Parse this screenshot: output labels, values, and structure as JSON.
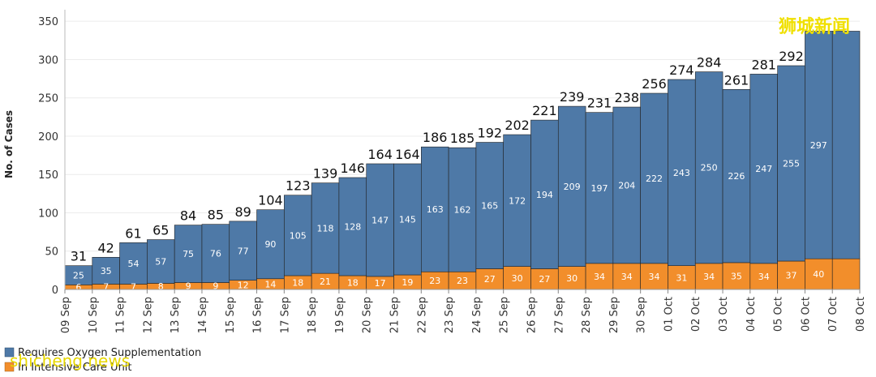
{
  "chart_data": {
    "type": "bar",
    "stacked": true,
    "ylabel": "No. of Cases",
    "ylim": [
      0,
      365
    ],
    "yticks": [
      0,
      50,
      100,
      150,
      200,
      250,
      300,
      350
    ],
    "grid": true,
    "x_tick_labels": [
      "09 Sep",
      "10 Sep",
      "11 Sep",
      "12 Sep",
      "13 Sep",
      "14 Sep",
      "15 Sep",
      "16 Sep",
      "17 Sep",
      "18 Sep",
      "19 Sep",
      "20 Sep",
      "21 Sep",
      "22 Sep",
      "23 Sep",
      "24 Sep",
      "25 Sep",
      "26 Sep",
      "27 Sep",
      "28 Sep",
      "29 Sep",
      "30 Sep",
      "01 Oct",
      "02 Oct",
      "03 Oct",
      "04 Oct",
      "05 Oct",
      "06 Oct",
      "07 Oct",
      "08 Oct"
    ],
    "categories": [
      "09 Sep",
      "10 Sep",
      "11 Sep",
      "12 Sep",
      "13 Sep",
      "14 Sep",
      "15 Sep",
      "16 Sep",
      "17 Sep",
      "18 Sep",
      "19 Sep",
      "20 Sep",
      "21 Sep",
      "22 Sep",
      "23 Sep",
      "24 Sep",
      "25 Sep",
      "26 Sep",
      "27 Sep",
      "28 Sep",
      "29 Sep",
      "30 Sep",
      "01 Oct",
      "02 Oct",
      "03 Oct",
      "04 Oct",
      "05 Oct",
      "06 Oct",
      "07 Oct"
    ],
    "series": [
      {
        "name": "In Intensive Care Unit",
        "color": "#f28e2b",
        "values": [
          6,
          7,
          7,
          8,
          9,
          9,
          12,
          14,
          18,
          21,
          18,
          17,
          19,
          23,
          23,
          27,
          30,
          27,
          30,
          34,
          34,
          34,
          31,
          34,
          35,
          34,
          37,
          40,
          40
        ]
      },
      {
        "name": "Requires Oxygen Supplementation",
        "color": "#4e79a7",
        "values": [
          25,
          35,
          54,
          57,
          75,
          76,
          77,
          90,
          105,
          118,
          128,
          147,
          145,
          163,
          162,
          165,
          172,
          194,
          209,
          197,
          204,
          222,
          243,
          250,
          226,
          247,
          255,
          297,
          297
        ]
      }
    ],
    "totals": [
      31,
      42,
      61,
      65,
      84,
      85,
      89,
      104,
      123,
      139,
      146,
      164,
      164,
      186,
      185,
      192,
      202,
      221,
      239,
      231,
      238,
      256,
      274,
      284,
      261,
      281,
      292,
      337,
      337
    ],
    "segment_labels": {
      "top": [
        "25",
        "35",
        "54",
        "57",
        "75",
        "76",
        "77",
        "90",
        "105",
        "118",
        "128",
        "147",
        "145",
        "163",
        "162",
        "165",
        "172",
        "194",
        "209",
        "197",
        "204",
        "222",
        "243",
        "250",
        "226",
        "247",
        "255",
        "297",
        ""
      ],
      "bottom": [
        "6",
        "7",
        "7",
        "8",
        "9",
        "9",
        "12",
        "14",
        "18",
        "21",
        "18",
        "17",
        "19",
        "23",
        "23",
        "27",
        "30",
        "27",
        "30",
        "34",
        "34",
        "34",
        "31",
        "34",
        "35",
        "34",
        "37",
        "40",
        ""
      ]
    },
    "total_labels": [
      "31",
      "42",
      "61",
      "65",
      "84",
      "85",
      "89",
      "104",
      "123",
      "139",
      "146",
      "164",
      "164",
      "186",
      "185",
      "192",
      "202",
      "221",
      "239",
      "231",
      "238",
      "256",
      "274",
      "284",
      "261",
      "281",
      "292",
      "",
      ""
    ],
    "legend": [
      {
        "label": "Requires Oxygen Supplementation",
        "color": "#4e79a7"
      },
      {
        "label": "In Intensive Care Unit",
        "color": "#f28e2b"
      }
    ],
    "legend_position": "bottom-left"
  },
  "watermark": {
    "cn": "狮城新闻",
    "en": "shicheng.news"
  }
}
